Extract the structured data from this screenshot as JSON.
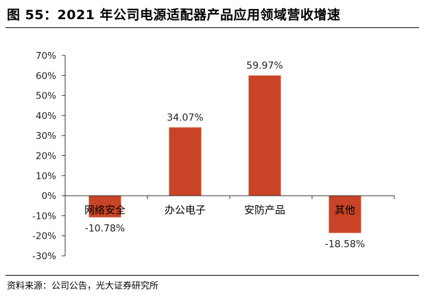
{
  "title": "图 55：2021 年公司电源适配器产品应用领域营收增速",
  "source": "资料来源：公司公告，光大证券研究所",
  "colors": {
    "bar": "#C94426",
    "axis": "#333333"
  },
  "chart_data": {
    "type": "bar",
    "title": "",
    "xlabel": "",
    "ylabel": "",
    "categories": [
      "网络安全",
      "办公电子",
      "安防产品",
      "其他"
    ],
    "values": [
      -10.78,
      34.07,
      59.97,
      -18.58
    ],
    "data_labels": [
      "-10.78%",
      "34.07%",
      "59.97%",
      "-18.58%"
    ],
    "ylim": [
      -30,
      70
    ],
    "yticks": [
      70,
      60,
      50,
      40,
      30,
      20,
      10,
      0,
      -10,
      -20,
      -30
    ],
    "ytick_labels": [
      "70%",
      "60%",
      "50%",
      "40%",
      "30%",
      "20%",
      "10%",
      "0%",
      "-10%",
      "-20%",
      "-30%"
    ],
    "grid": false,
    "legend": "none"
  }
}
